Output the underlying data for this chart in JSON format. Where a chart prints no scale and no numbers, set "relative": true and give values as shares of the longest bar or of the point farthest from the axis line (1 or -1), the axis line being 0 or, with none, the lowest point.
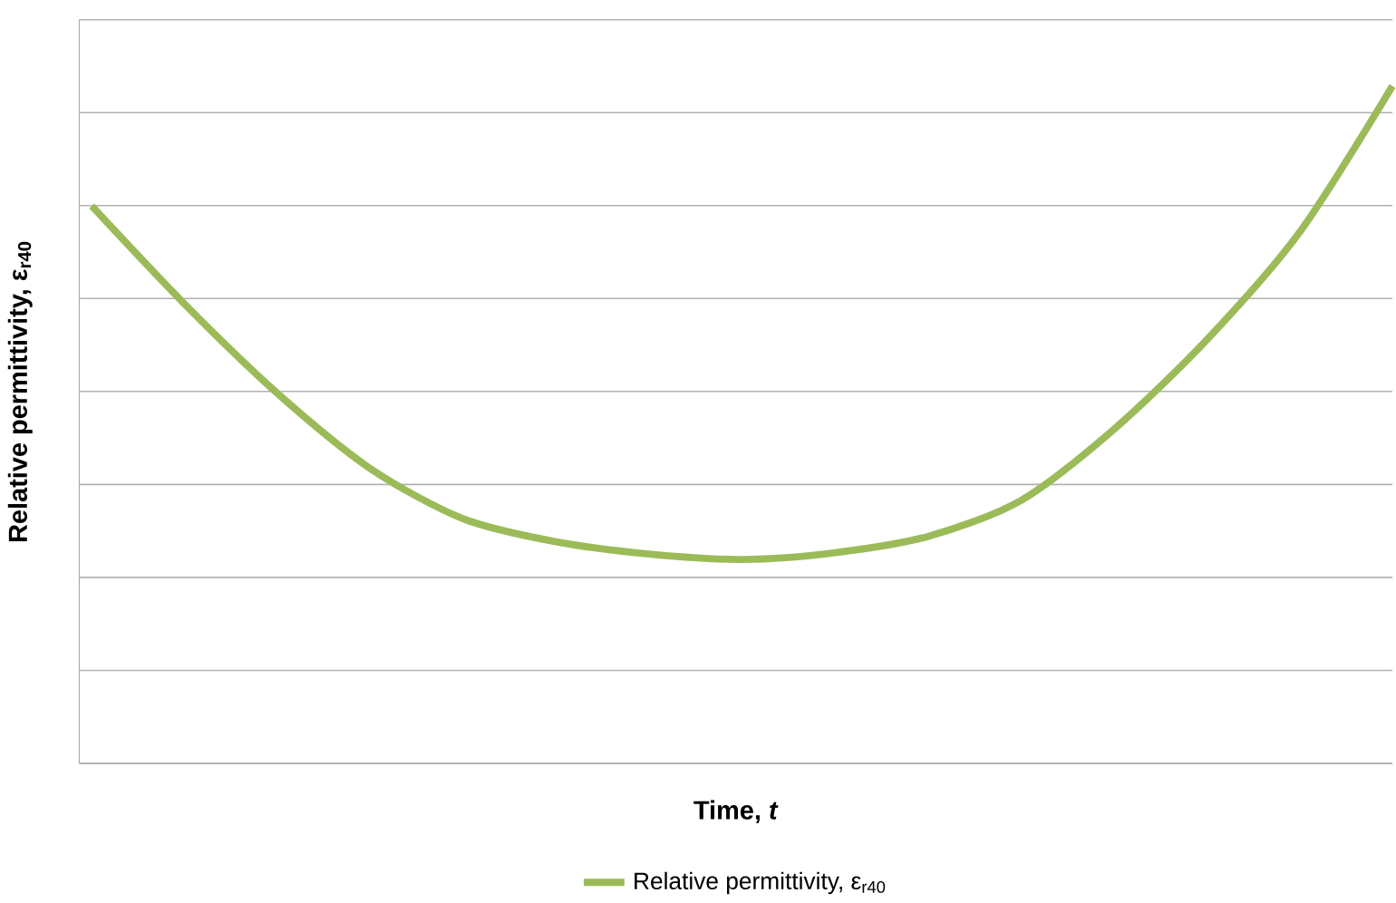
{
  "chart_data": {
    "type": "line",
    "relative": true,
    "xlabel": "Time, *t*",
    "ylabel": "Relative permittivity, ε$_{r40}$",
    "categories": [
      null,
      null,
      null,
      null,
      null,
      null,
      null,
      null,
      null,
      null,
      null,
      null,
      null,
      null,
      null
    ],
    "series": [
      {
        "name": "Relative permittivity, ε$_{r40}$",
        "color": "#9bbb59",
        "values": [
          0.823,
          0.678,
          0.546,
          0.435,
          0.361,
          0.327,
          0.309,
          0.301,
          0.311,
          0.335,
          0.388,
          0.493,
          0.625,
          0.784,
          1
        ]
      }
    ],
    "grid": "y",
    "legend": "bottom"
  }
}
